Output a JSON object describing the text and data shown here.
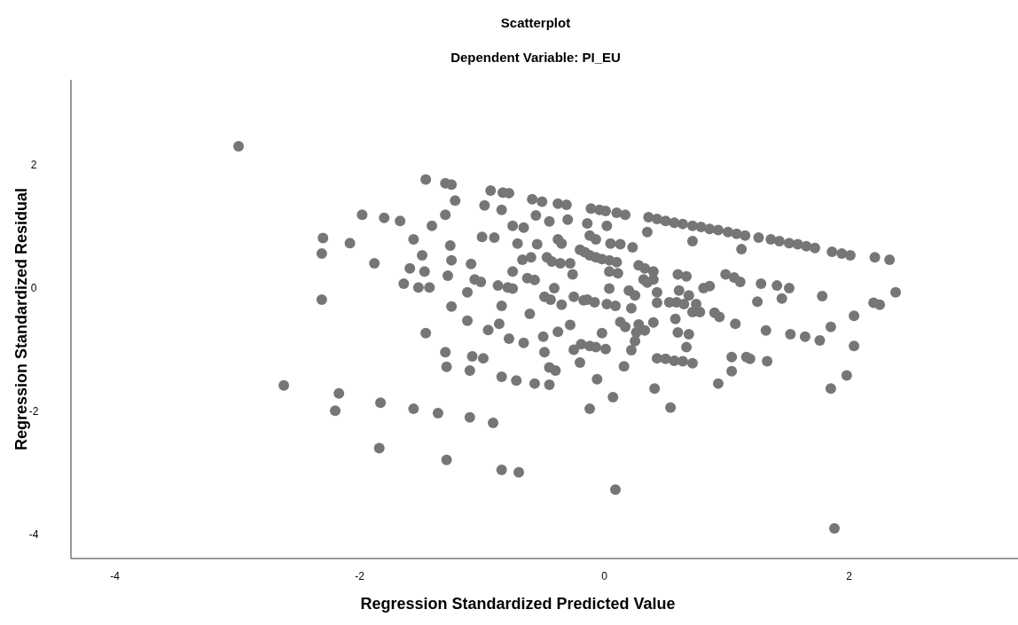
{
  "chart_data": {
    "type": "scatter",
    "title": "Scatterplot",
    "subtitle": "Dependent Variable: PI_EU",
    "xlabel": "Regression Standardized Predicted Value",
    "ylabel": "Regression Standardized Residual",
    "xlim": [
      -4.36,
      3.38
    ],
    "ylim": [
      -4.39,
      3.38
    ],
    "xticks": [
      -4,
      -2,
      0,
      2
    ],
    "yticks": [
      -4,
      -2,
      0,
      2
    ],
    "marker": "circle",
    "series": [
      {
        "color": "#767676",
        "x": [
          -2.99,
          -2.62,
          -2.3,
          -2.31,
          -2.31,
          -2.17,
          -2.2,
          -2.08,
          -1.98,
          -1.88,
          -1.83,
          -1.84,
          -1.8,
          -1.67,
          -1.64,
          -1.59,
          -1.56,
          -1.56,
          -1.52,
          -1.49,
          -1.46,
          -1.46,
          -1.43,
          -1.47,
          -1.41,
          -1.36,
          -1.3,
          -1.25,
          -1.3,
          -1.28,
          -1.22,
          -1.26,
          -1.25,
          -1.25,
          -1.3,
          -1.29,
          -1.29,
          -1.12,
          -1.09,
          -1.12,
          -1.08,
          -0.99,
          -1.1,
          -1.1,
          -1.06,
          -1.01,
          -1.0,
          -0.98,
          -0.95,
          -0.9,
          -0.91,
          -0.86,
          -0.93,
          -0.84,
          -0.83,
          -0.78,
          -0.87,
          -0.79,
          -0.75,
          -0.84,
          -0.84,
          -0.84,
          -0.7,
          -0.72,
          -0.75,
          -0.78,
          -0.66,
          -0.75,
          -0.66,
          -0.71,
          -0.67,
          -0.6,
          -0.63,
          -0.61,
          -0.59,
          -0.51,
          -0.56,
          -0.55,
          -0.57,
          -0.57,
          -0.49,
          -0.44,
          -0.5,
          -0.49,
          -0.45,
          -0.4,
          -0.45,
          -0.38,
          -0.31,
          -0.45,
          -0.38,
          -0.35,
          -0.43,
          -0.36,
          -0.28,
          -0.47,
          -0.41,
          -0.35,
          -0.28,
          -0.38,
          -0.3,
          -0.26,
          -0.25,
          -0.25,
          -0.2,
          -0.12,
          -0.2,
          -0.16,
          -0.12,
          -0.07,
          -0.02,
          0.04,
          0.1,
          -0.14,
          -0.12,
          -0.07,
          -0.17,
          -0.14,
          -0.08,
          -0.19,
          -0.12,
          -0.07,
          0.01,
          -0.06,
          -0.02,
          -0.11,
          -0.04,
          0.01,
          0.1,
          0.17,
          0.02,
          0.05,
          0.13,
          0.23,
          0.04,
          0.11,
          0.04,
          0.02,
          0.09,
          0.13,
          0.17,
          0.07,
          0.09,
          0.16,
          0.22,
          0.2,
          0.25,
          0.22,
          0.25,
          0.28,
          0.33,
          0.4,
          0.32,
          0.35,
          0.4,
          0.28,
          0.33,
          0.4,
          0.35,
          0.36,
          0.43,
          0.5,
          0.57,
          0.64,
          0.72,
          0.79,
          0.86,
          0.93,
          1.01,
          1.08,
          1.15,
          1.26,
          1.36,
          1.43,
          1.51,
          1.58,
          1.65,
          1.72,
          1.86,
          1.94,
          2.01,
          2.21,
          2.33,
          0.72,
          1.12,
          0.43,
          0.61,
          0.69,
          0.43,
          0.53,
          0.59,
          0.65,
          0.75,
          0.6,
          0.67,
          0.58,
          0.6,
          0.69,
          0.72,
          0.67,
          0.78,
          0.9,
          0.94,
          0.86,
          0.81,
          0.99,
          1.06,
          1.11,
          1.28,
          1.25,
          0.93,
          1.04,
          1.04,
          1.16,
          1.19,
          1.07,
          1.45,
          1.41,
          1.51,
          1.52,
          1.33,
          1.32,
          1.64,
          1.76,
          1.78,
          1.85,
          1.85,
          1.98,
          2.04,
          2.04,
          2.2,
          2.25,
          2.38,
          1.88,
          0.41,
          0.54,
          0.26,
          0.43,
          0.5,
          0.57,
          0.64,
          0.72
        ],
        "values": [
          2.3,
          -1.58,
          0.81,
          0.56,
          -0.19,
          -1.71,
          -1.99,
          0.73,
          1.19,
          0.4,
          -1.86,
          -2.6,
          1.14,
          1.09,
          0.07,
          0.32,
          0.79,
          -1.96,
          0.01,
          0.53,
          -0.73,
          1.76,
          0.01,
          0.27,
          1.01,
          -2.03,
          1.7,
          1.68,
          1.19,
          0.2,
          1.42,
          0.69,
          0.45,
          -0.3,
          -1.04,
          -1.28,
          -2.79,
          -0.53,
          0.39,
          -0.07,
          -1.11,
          -1.14,
          -1.34,
          -2.1,
          0.14,
          0.1,
          0.83,
          1.34,
          -0.68,
          0.82,
          -2.19,
          -0.58,
          1.58,
          1.27,
          1.55,
          1.54,
          0.04,
          0.01,
          -0.01,
          -0.29,
          -1.44,
          -2.95,
          -2.99,
          -1.5,
          0.27,
          -0.82,
          -0.89,
          1.01,
          0.98,
          0.72,
          0.46,
          0.5,
          0.16,
          -0.42,
          1.44,
          1.4,
          1.18,
          0.71,
          0.13,
          -1.55,
          -0.14,
          -0.19,
          -0.79,
          -1.04,
          -1.29,
          -1.34,
          -1.57,
          1.37,
          1.35,
          1.08,
          0.79,
          0.72,
          0.43,
          0.4,
          0.4,
          0.5,
          0.0,
          -0.27,
          -0.6,
          -0.71,
          1.11,
          0.22,
          -0.14,
          -1.0,
          -1.21,
          -1.96,
          0.62,
          0.58,
          0.53,
          0.5,
          0.47,
          0.45,
          0.42,
          1.05,
          0.85,
          0.79,
          -0.2,
          -0.19,
          -0.23,
          -0.91,
          -0.94,
          -0.96,
          -0.99,
          -1.48,
          -0.73,
          1.29,
          1.27,
          1.25,
          1.22,
          1.19,
          1.01,
          0.72,
          0.71,
          0.66,
          0.27,
          0.24,
          -0.01,
          -0.26,
          -0.29,
          -0.55,
          -0.63,
          -1.77,
          -3.27,
          -1.27,
          -0.33,
          -0.04,
          -0.12,
          -1.01,
          -0.86,
          0.37,
          0.32,
          0.27,
          0.14,
          0.09,
          0.14,
          -0.59,
          -0.69,
          -0.56,
          0.91,
          1.15,
          1.12,
          1.09,
          1.06,
          1.04,
          1.01,
          0.99,
          0.96,
          0.94,
          0.91,
          0.88,
          0.85,
          0.82,
          0.79,
          0.76,
          0.73,
          0.71,
          0.68,
          0.65,
          0.59,
          0.56,
          0.53,
          0.5,
          0.46,
          0.76,
          0.63,
          -0.07,
          -0.04,
          -0.12,
          -0.24,
          -0.23,
          -0.23,
          -0.26,
          -0.26,
          0.22,
          0.19,
          -0.5,
          -0.72,
          -0.75,
          -0.39,
          -0.96,
          -0.39,
          -0.4,
          -0.47,
          0.03,
          0.0,
          0.22,
          0.17,
          0.1,
          0.07,
          -0.22,
          -1.55,
          -1.35,
          -1.12,
          -1.12,
          -1.15,
          -0.58,
          -0.17,
          0.04,
          0.0,
          -0.75,
          -1.19,
          -0.69,
          -0.79,
          -0.85,
          -0.13,
          -0.63,
          -1.63,
          -1.42,
          -0.94,
          -0.45,
          -0.24,
          -0.27,
          -0.07,
          -3.9,
          -1.63,
          -1.94,
          -0.72,
          -1.14,
          -1.15,
          -1.18,
          -1.19,
          -1.22
        ]
      }
    ]
  }
}
